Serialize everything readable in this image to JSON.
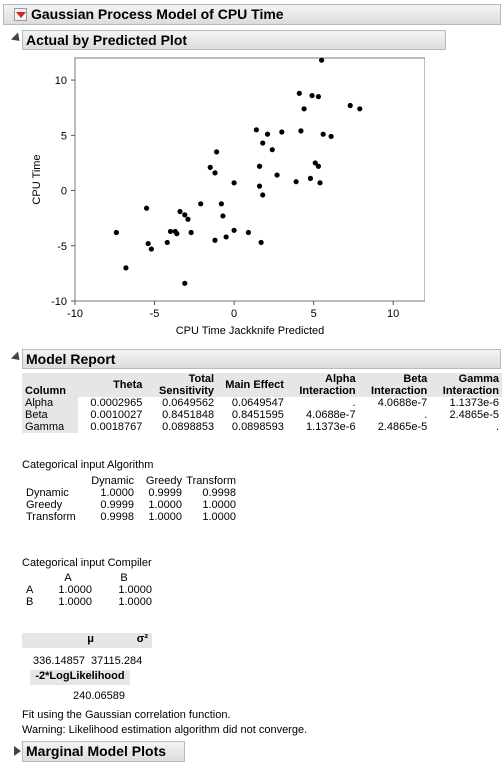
{
  "main_title": "Gaussian Process Model of CPU Time",
  "plot_section": {
    "title": "Actual by Predicted Plot",
    "xlabel": "CPU Time Jackknife Predicted",
    "ylabel": "CPU Time"
  },
  "chart_data": {
    "type": "scatter",
    "title": "",
    "xlabel": "CPU Time Jackknife Predicted",
    "ylabel": "CPU Time",
    "xlim": [
      -10,
      12
    ],
    "ylim": [
      -10,
      12
    ],
    "xticks": [
      "-10",
      "-5",
      "0",
      "5",
      "10"
    ],
    "yticks": [
      "10",
      "5",
      "0",
      "-5",
      "-10"
    ],
    "grid": false,
    "points": [
      {
        "x": -7.4,
        "y": -3.8
      },
      {
        "x": -6.8,
        "y": -7.0
      },
      {
        "x": -5.5,
        "y": -1.6
      },
      {
        "x": -5.4,
        "y": -4.8
      },
      {
        "x": -5.2,
        "y": -5.3
      },
      {
        "x": -4.2,
        "y": -4.7
      },
      {
        "x": -4.0,
        "y": -3.7
      },
      {
        "x": -3.7,
        "y": -3.7
      },
      {
        "x": -3.6,
        "y": -3.9
      },
      {
        "x": -3.4,
        "y": -1.9
      },
      {
        "x": -3.1,
        "y": -8.4
      },
      {
        "x": -3.1,
        "y": -2.2
      },
      {
        "x": -2.9,
        "y": -2.6
      },
      {
        "x": -2.7,
        "y": -3.8
      },
      {
        "x": -2.1,
        "y": -1.2
      },
      {
        "x": -1.5,
        "y": 2.1
      },
      {
        "x": -1.2,
        "y": 1.6
      },
      {
        "x": -1.1,
        "y": 3.5
      },
      {
        "x": -1.2,
        "y": -4.5
      },
      {
        "x": -0.7,
        "y": -2.3
      },
      {
        "x": -0.5,
        "y": -4.2
      },
      {
        "x": -0.8,
        "y": -1.2
      },
      {
        "x": 0.0,
        "y": -3.6
      },
      {
        "x": 0.0,
        "y": 0.7
      },
      {
        "x": 0.9,
        "y": -3.8
      },
      {
        "x": 1.4,
        "y": 5.5
      },
      {
        "x": 1.6,
        "y": 2.2
      },
      {
        "x": 1.6,
        "y": 0.4
      },
      {
        "x": 1.7,
        "y": -4.7
      },
      {
        "x": 1.8,
        "y": -0.4
      },
      {
        "x": 1.8,
        "y": 4.3
      },
      {
        "x": 2.1,
        "y": 5.1
      },
      {
        "x": 2.4,
        "y": 3.7
      },
      {
        "x": 2.7,
        "y": 1.4
      },
      {
        "x": 3.0,
        "y": 5.3
      },
      {
        "x": 3.9,
        "y": 0.8
      },
      {
        "x": 4.2,
        "y": 5.4
      },
      {
        "x": 4.1,
        "y": 8.8
      },
      {
        "x": 4.4,
        "y": 7.4
      },
      {
        "x": 4.8,
        "y": 1.1
      },
      {
        "x": 4.9,
        "y": 8.6
      },
      {
        "x": 5.1,
        "y": 2.5
      },
      {
        "x": 5.3,
        "y": 8.5
      },
      {
        "x": 5.3,
        "y": 2.2
      },
      {
        "x": 5.4,
        "y": 0.7
      },
      {
        "x": 5.5,
        "y": 11.8
      },
      {
        "x": 5.6,
        "y": 5.1
      },
      {
        "x": 6.1,
        "y": 4.9
      },
      {
        "x": 7.3,
        "y": 7.7
      },
      {
        "x": 7.9,
        "y": 7.4
      }
    ]
  },
  "model_report": {
    "title": "Model Report",
    "columns": [
      [
        "",
        "Column"
      ],
      [
        "",
        "Theta"
      ],
      [
        "Total",
        "Sensitivity"
      ],
      [
        "",
        "Main Effect"
      ],
      [
        "Alpha",
        "Interaction"
      ],
      [
        "Beta",
        "Interaction"
      ],
      [
        "Gamma",
        "Interaction"
      ]
    ],
    "rows": [
      [
        "Alpha",
        "0.0002965",
        "0.0649562",
        "0.0649547",
        ".",
        "4.0688e-7",
        "1.1373e-6"
      ],
      [
        "Beta",
        "0.0010027",
        "0.8451848",
        "0.8451595",
        "4.0688e-7",
        ".",
        "2.4865e-5"
      ],
      [
        "Gamma",
        "0.0018767",
        "0.0898853",
        "0.0898593",
        "1.1373e-6",
        "2.4865e-5",
        "."
      ]
    ],
    "algorithm": {
      "title": "Categorical input Algorithm",
      "headers": [
        "Dynamic",
        "Greedy",
        "Transform"
      ],
      "rows": [
        [
          "Dynamic",
          "1.0000",
          "0.9999",
          "0.9998"
        ],
        [
          "Greedy",
          "0.9999",
          "1.0000",
          "1.0000"
        ],
        [
          "Transform",
          "0.9998",
          "1.0000",
          "1.0000"
        ]
      ]
    },
    "compiler": {
      "title": "Categorical input Compiler",
      "headers": [
        "A",
        "B"
      ],
      "rows": [
        [
          "A",
          "1.0000",
          "1.0000"
        ],
        [
          "B",
          "1.0000",
          "1.0000"
        ]
      ]
    },
    "mu_label": "μ",
    "sigma_label": "σ²",
    "mu_value": "336.14857",
    "sigma_value": "37115.284",
    "loglik_label": "-2*LogLikelihood",
    "loglik_value": "240.06589",
    "note1": "Fit using the Gaussian correlation function.",
    "note2": "Warning: Likelihood estimation algorithm did not converge."
  },
  "marginal_section": {
    "title": "Marginal Model Plots"
  }
}
